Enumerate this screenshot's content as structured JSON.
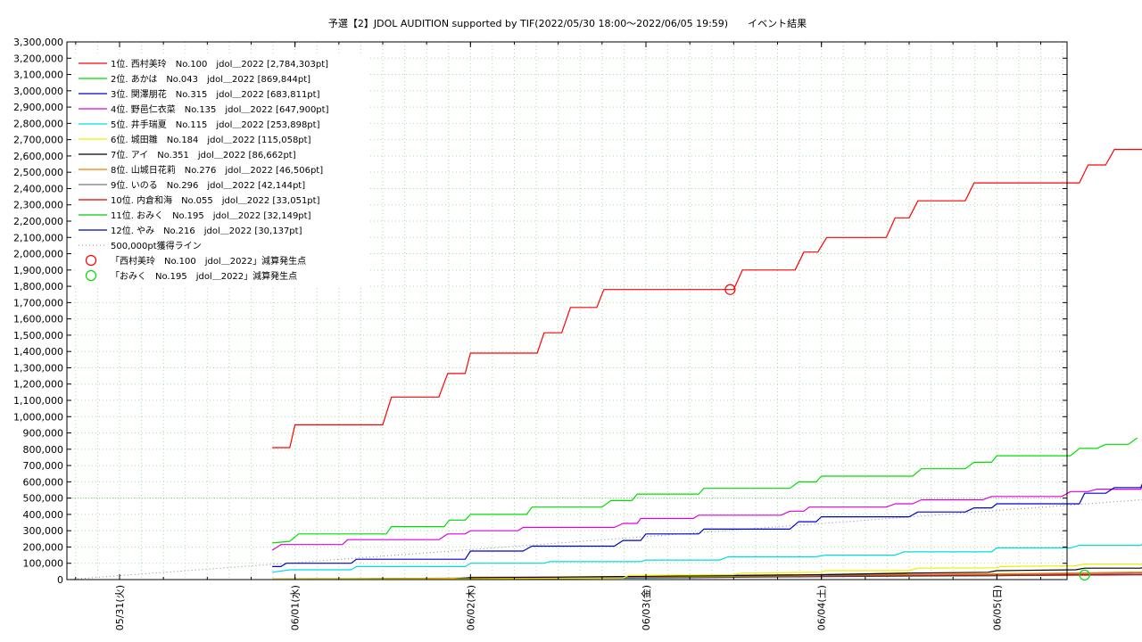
{
  "chart_data": {
    "type": "line",
    "title": "予選【2】JDOL AUDITION supported by TIF(2022/05/30 18:00～2022/06/05 19:59)　　イベント結果",
    "xlabel": "",
    "ylabel": "",
    "ylim": [
      0,
      3300000
    ],
    "xlim": [
      -0.3,
      5.4
    ],
    "y_ticks": [
      {
        "v": 0,
        "label": "0"
      },
      {
        "v": 100000,
        "label": "100,000"
      },
      {
        "v": 200000,
        "label": "200,000"
      },
      {
        "v": 300000,
        "label": "300,000"
      },
      {
        "v": 400000,
        "label": "400,000"
      },
      {
        "v": 500000,
        "label": "500,000"
      },
      {
        "v": 600000,
        "label": "600,000"
      },
      {
        "v": 700000,
        "label": "700,000"
      },
      {
        "v": 800000,
        "label": "800,000"
      },
      {
        "v": 900000,
        "label": "900,000"
      },
      {
        "v": 1000000,
        "label": "1,000,000"
      },
      {
        "v": 1100000,
        "label": "1,100,000"
      },
      {
        "v": 1200000,
        "label": "1,200,000"
      },
      {
        "v": 1300000,
        "label": "1,300,000"
      },
      {
        "v": 1400000,
        "label": "1,400,000"
      },
      {
        "v": 1500000,
        "label": "1,500,000"
      },
      {
        "v": 1600000,
        "label": "1,600,000"
      },
      {
        "v": 1700000,
        "label": "1,700,000"
      },
      {
        "v": 1800000,
        "label": "1,800,000"
      },
      {
        "v": 1900000,
        "label": "1,900,000"
      },
      {
        "v": 2000000,
        "label": "2,000,000"
      },
      {
        "v": 2100000,
        "label": "2,100,000"
      },
      {
        "v": 2200000,
        "label": "2,200,000"
      },
      {
        "v": 2300000,
        "label": "2,300,000"
      },
      {
        "v": 2400000,
        "label": "2,400,000"
      },
      {
        "v": 2500000,
        "label": "2,500,000"
      },
      {
        "v": 2600000,
        "label": "2,600,000"
      },
      {
        "v": 2700000,
        "label": "2,700,000"
      },
      {
        "v": 2800000,
        "label": "2,800,000"
      },
      {
        "v": 2900000,
        "label": "2,900,000"
      },
      {
        "v": 3000000,
        "label": "3,000,000"
      },
      {
        "v": 3100000,
        "label": "3,100,000"
      },
      {
        "v": 3200000,
        "label": "3,200,000"
      },
      {
        "v": 3300000,
        "label": "3,300,000"
      }
    ],
    "x_ticks": [
      {
        "v": 0,
        "label": "05/31(火)"
      },
      {
        "v": 1,
        "label": "06/01(水)"
      },
      {
        "v": 2,
        "label": "06/02(木)"
      },
      {
        "v": 3,
        "label": "06/03(金)"
      },
      {
        "v": 4,
        "label": "06/04(土)"
      },
      {
        "v": 5,
        "label": "06/05(日)"
      }
    ],
    "grid": true,
    "legend_position": "top-left",
    "series": [
      {
        "name": "1位. 西村美玲　No.100　jdol＿2022 [2,784,303pt]",
        "color": "#ff0000",
        "points": [
          [
            0.87,
            810000
          ],
          [
            0.97,
            810000
          ],
          [
            1.0,
            950000
          ],
          [
            1.5,
            950000
          ],
          [
            1.55,
            1120000
          ],
          [
            1.82,
            1120000
          ],
          [
            1.87,
            1265000
          ],
          [
            1.97,
            1265000
          ],
          [
            2.0,
            1390000
          ],
          [
            2.38,
            1390000
          ],
          [
            2.42,
            1515000
          ],
          [
            2.52,
            1515000
          ],
          [
            2.57,
            1670000
          ],
          [
            2.72,
            1670000
          ],
          [
            2.76,
            1780000
          ],
          [
            3.5,
            1780000
          ],
          [
            3.55,
            1900000
          ],
          [
            3.85,
            1900000
          ],
          [
            3.9,
            2010000
          ],
          [
            3.98,
            2010000
          ],
          [
            4.03,
            2100000
          ],
          [
            4.37,
            2100000
          ],
          [
            4.42,
            2220000
          ],
          [
            4.5,
            2220000
          ],
          [
            4.55,
            2325000
          ],
          [
            4.82,
            2325000
          ],
          [
            4.87,
            2435000
          ],
          [
            5.47,
            2435000
          ],
          [
            5.52,
            2545000
          ],
          [
            5.62,
            2545000
          ],
          [
            5.67,
            2640000
          ],
          [
            5.87,
            2640000
          ],
          [
            5.92,
            2784303
          ]
        ]
      },
      {
        "name": "2位. あかは　No.043　jdol＿2022 [869,844pt]",
        "color": "#00dd00",
        "points": [
          [
            0.87,
            225000
          ],
          [
            0.97,
            235000
          ],
          [
            1.02,
            280000
          ],
          [
            1.52,
            280000
          ],
          [
            1.55,
            325000
          ],
          [
            1.85,
            325000
          ],
          [
            1.88,
            365000
          ],
          [
            1.97,
            365000
          ],
          [
            2.0,
            400000
          ],
          [
            2.32,
            400000
          ],
          [
            2.35,
            445000
          ],
          [
            2.75,
            445000
          ],
          [
            2.8,
            485000
          ],
          [
            2.92,
            485000
          ],
          [
            2.95,
            525000
          ],
          [
            3.3,
            525000
          ],
          [
            3.33,
            560000
          ],
          [
            3.82,
            560000
          ],
          [
            3.87,
            600000
          ],
          [
            3.97,
            600000
          ],
          [
            4.0,
            635000
          ],
          [
            4.52,
            635000
          ],
          [
            4.57,
            680000
          ],
          [
            4.82,
            680000
          ],
          [
            4.87,
            720000
          ],
          [
            4.97,
            720000
          ],
          [
            5.0,
            760000
          ],
          [
            5.42,
            760000
          ],
          [
            5.47,
            805000
          ],
          [
            5.57,
            805000
          ],
          [
            5.62,
            830000
          ],
          [
            5.75,
            830000
          ],
          [
            5.8,
            869844
          ]
        ]
      },
      {
        "name": "3位. 関澤朋花　No.315　jdol＿2022 [683,811pt]",
        "color": "#0000cc",
        "points": [
          [
            0.87,
            80000
          ],
          [
            0.92,
            80000
          ],
          [
            0.95,
            100000
          ],
          [
            1.32,
            100000
          ],
          [
            1.35,
            125000
          ],
          [
            1.97,
            125000
          ],
          [
            2.0,
            175000
          ],
          [
            2.3,
            175000
          ],
          [
            2.35,
            205000
          ],
          [
            2.82,
            205000
          ],
          [
            2.87,
            240000
          ],
          [
            2.97,
            240000
          ],
          [
            3.0,
            280000
          ],
          [
            3.3,
            280000
          ],
          [
            3.33,
            310000
          ],
          [
            3.82,
            310000
          ],
          [
            3.87,
            355000
          ],
          [
            3.97,
            355000
          ],
          [
            4.0,
            385000
          ],
          [
            4.5,
            385000
          ],
          [
            4.55,
            415000
          ],
          [
            4.82,
            415000
          ],
          [
            4.87,
            440000
          ],
          [
            4.97,
            440000
          ],
          [
            5.0,
            465000
          ],
          [
            5.47,
            465000
          ],
          [
            5.5,
            530000
          ],
          [
            5.62,
            530000
          ],
          [
            5.67,
            565000
          ],
          [
            5.82,
            565000
          ],
          [
            5.87,
            683811
          ]
        ]
      },
      {
        "name": "4位. 野邑仁衣菜　No.135　jdol＿2022 [647,900pt]",
        "color": "#dd00dd",
        "points": [
          [
            0.87,
            180000
          ],
          [
            0.92,
            215000
          ],
          [
            1.27,
            215000
          ],
          [
            1.3,
            245000
          ],
          [
            1.82,
            245000
          ],
          [
            1.87,
            280000
          ],
          [
            1.97,
            280000
          ],
          [
            2.0,
            300000
          ],
          [
            2.27,
            300000
          ],
          [
            2.3,
            320000
          ],
          [
            2.82,
            320000
          ],
          [
            2.87,
            345000
          ],
          [
            2.95,
            345000
          ],
          [
            2.97,
            375000
          ],
          [
            3.27,
            375000
          ],
          [
            3.3,
            395000
          ],
          [
            3.77,
            395000
          ],
          [
            3.82,
            420000
          ],
          [
            3.9,
            420000
          ],
          [
            3.93,
            445000
          ],
          [
            4.37,
            445000
          ],
          [
            4.42,
            465000
          ],
          [
            4.52,
            465000
          ],
          [
            4.57,
            490000
          ],
          [
            4.92,
            490000
          ],
          [
            4.97,
            510000
          ],
          [
            5.37,
            510000
          ],
          [
            5.42,
            540000
          ],
          [
            5.52,
            540000
          ],
          [
            5.57,
            555000
          ],
          [
            5.82,
            555000
          ],
          [
            5.87,
            647900
          ]
        ]
      },
      {
        "name": "5位. 井手瑞夏　No.115　jdol＿2022 [253,898pt]",
        "color": "#00dddd",
        "points": [
          [
            0.87,
            45000
          ],
          [
            0.97,
            60000
          ],
          [
            1.32,
            60000
          ],
          [
            1.35,
            80000
          ],
          [
            1.97,
            80000
          ],
          [
            2.0,
            100000
          ],
          [
            2.42,
            100000
          ],
          [
            2.45,
            110000
          ],
          [
            2.97,
            110000
          ],
          [
            3.0,
            120000
          ],
          [
            3.42,
            120000
          ],
          [
            3.47,
            140000
          ],
          [
            3.97,
            140000
          ],
          [
            4.02,
            150000
          ],
          [
            4.42,
            150000
          ],
          [
            4.47,
            170000
          ],
          [
            4.97,
            170000
          ],
          [
            5.0,
            195000
          ],
          [
            5.42,
            195000
          ],
          [
            5.47,
            210000
          ],
          [
            5.82,
            210000
          ],
          [
            5.87,
            253898
          ]
        ]
      },
      {
        "name": "6位. 城田雛　No.184　jdol＿2022 [115,058pt]",
        "color": "#eeee00",
        "points": [
          [
            0.87,
            3000
          ],
          [
            2.0,
            5000
          ],
          [
            2.87,
            10000
          ],
          [
            2.9,
            25000
          ],
          [
            3.5,
            30000
          ],
          [
            3.55,
            40000
          ],
          [
            4.0,
            45000
          ],
          [
            4.02,
            55000
          ],
          [
            4.5,
            55000
          ],
          [
            4.55,
            70000
          ],
          [
            5.0,
            72000
          ],
          [
            5.02,
            80000
          ],
          [
            5.45,
            85000
          ],
          [
            5.5,
            95000
          ],
          [
            5.82,
            95000
          ],
          [
            5.87,
            115058
          ]
        ]
      },
      {
        "name": "7位. アイ　No.351　jdol＿2022 [86,662pt]",
        "color": "#000000",
        "points": [
          [
            0.87,
            3000
          ],
          [
            1.9,
            5000
          ],
          [
            2.0,
            12000
          ],
          [
            2.5,
            15000
          ],
          [
            3.0,
            20000
          ],
          [
            3.5,
            25000
          ],
          [
            4.0,
            30000
          ],
          [
            4.5,
            40000
          ],
          [
            4.95,
            45000
          ],
          [
            5.0,
            55000
          ],
          [
            5.45,
            60000
          ],
          [
            5.5,
            70000
          ],
          [
            5.82,
            70000
          ],
          [
            5.87,
            86662
          ]
        ]
      },
      {
        "name": "8位. 山城日花莉　No.276　jdol＿2022 [46,506pt]",
        "color": "#ff7700",
        "points": [
          [
            0.87,
            2000
          ],
          [
            1.97,
            8000
          ],
          [
            2.0,
            15000
          ],
          [
            3.0,
            18000
          ],
          [
            3.97,
            25000
          ],
          [
            4.0,
            30000
          ],
          [
            5.0,
            35000
          ],
          [
            5.9,
            46506
          ]
        ]
      },
      {
        "name": "9位. いのる　No.296　jdol＿2022 [42,144pt]",
        "color": "#777777",
        "points": [
          [
            0.87,
            2000
          ],
          [
            2.0,
            10000
          ],
          [
            2.5,
            12000
          ],
          [
            3.0,
            15000
          ],
          [
            4.0,
            25000
          ],
          [
            5.0,
            32000
          ],
          [
            5.9,
            42144
          ]
        ]
      },
      {
        "name": "10位. 内倉和海　No.055　jdol＿2022 [33,051pt]",
        "color": "#dd0000",
        "points": [
          [
            0.87,
            1500
          ],
          [
            1.97,
            5000
          ],
          [
            2.0,
            10000
          ],
          [
            3.0,
            15000
          ],
          [
            4.0,
            22000
          ],
          [
            5.0,
            26000
          ],
          [
            5.9,
            33051
          ]
        ]
      },
      {
        "name": "11位. おみく　No.195　jdol＿2022 [32,149pt]",
        "color": "#00cc00",
        "points": [
          [
            0.87,
            1000
          ],
          [
            2.0,
            8000
          ],
          [
            3.0,
            12000
          ],
          [
            4.0,
            20000
          ],
          [
            5.0,
            25000
          ],
          [
            5.5,
            29000
          ],
          [
            5.9,
            32149
          ]
        ]
      },
      {
        "name": "12位. やみ　No.216　jdol＿2022 [30,137pt]",
        "color": "#0000bb",
        "points": [
          [
            0.87,
            1000
          ],
          [
            2.0,
            5000
          ],
          [
            3.0,
            10000
          ],
          [
            4.0,
            18000
          ],
          [
            5.0,
            24000
          ],
          [
            5.9,
            30137
          ]
        ]
      }
    ],
    "reference_line": {
      "name": "500,000pt獲得ライン",
      "color": "#888888",
      "points": [
        [
          -0.3,
          0
        ],
        [
          5.95,
          500000
        ]
      ]
    },
    "markers": [
      {
        "name": "「西村美玲　No.100　jdol＿2022」減算発生点",
        "color": "#ff0000",
        "x": 3.48,
        "y": 1780000
      },
      {
        "name": "「おみく　No.195　jdol＿2022」減算発生点",
        "color": "#00dd00",
        "x": 5.5,
        "y": 28000
      }
    ]
  }
}
